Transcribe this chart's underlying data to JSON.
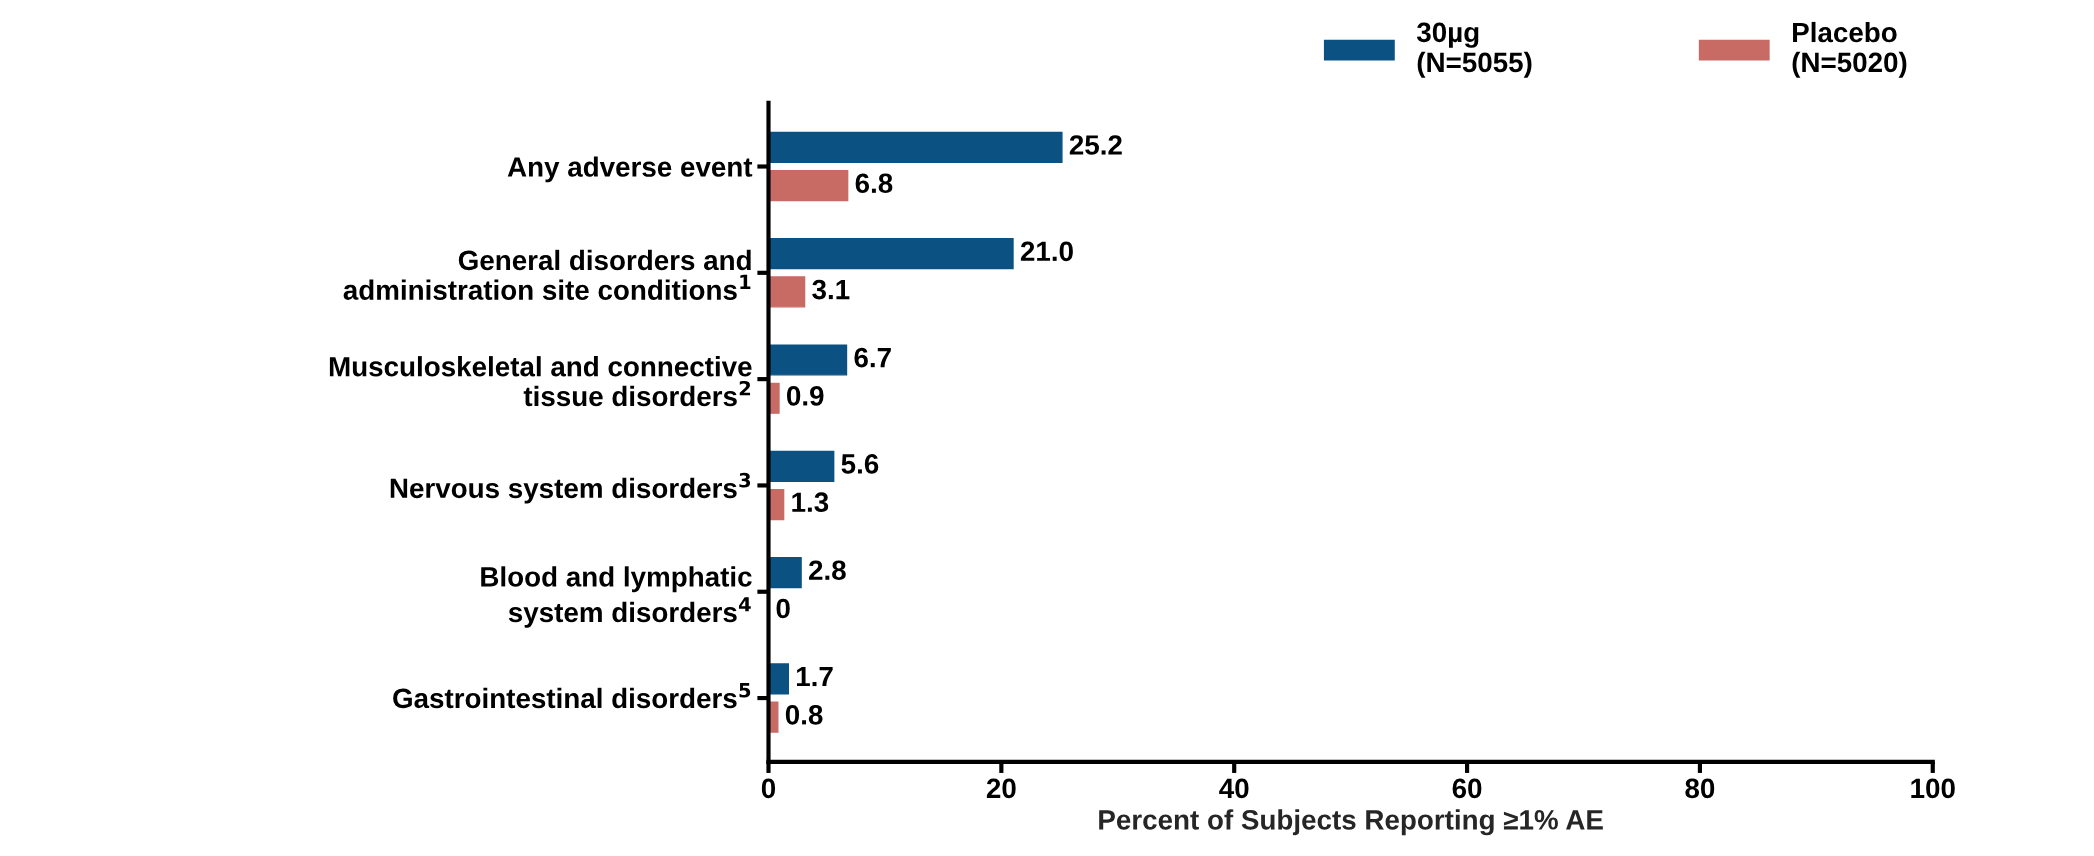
{
  "chart_data": {
    "type": "bar",
    "orientation": "horizontal",
    "xlabel": "Percent of Subjects Reporting ≥1% AE",
    "categories": [
      "Any adverse event",
      "General disorders and\nadministration site conditions$^{1}$",
      "Musculoskeletal and connective\ntissue disorders$^{2}$",
      "Nervous system disorders$^{3}$",
      "Blood and lymphatic\nsystem disorders$^{4}$",
      "Gastrointestinal disorders$^{5}$"
    ],
    "series": [
      {
        "name": "30µg\n(N=5055)",
        "color": "#0b5282",
        "values": [
          25.2,
          21.0,
          6.7,
          5.6,
          2.8,
          1.7
        ],
        "value_labels": [
          "25.2",
          "21.0",
          "6.7",
          "5.6",
          "2.8",
          "1.7"
        ]
      },
      {
        "name": "Placebo\n(N=5020)",
        "color": "#c76b64",
        "values": [
          6.8,
          3.1,
          0.9,
          1.3,
          0,
          0.8
        ],
        "value_labels": [
          "6.8",
          "3.1",
          "0.9",
          "1.3",
          "0",
          "0.8"
        ]
      }
    ],
    "xlim": [
      0,
      100
    ],
    "xticks": [
      0,
      20,
      40,
      60,
      80,
      100
    ],
    "grid": false,
    "legend": "top right"
  }
}
